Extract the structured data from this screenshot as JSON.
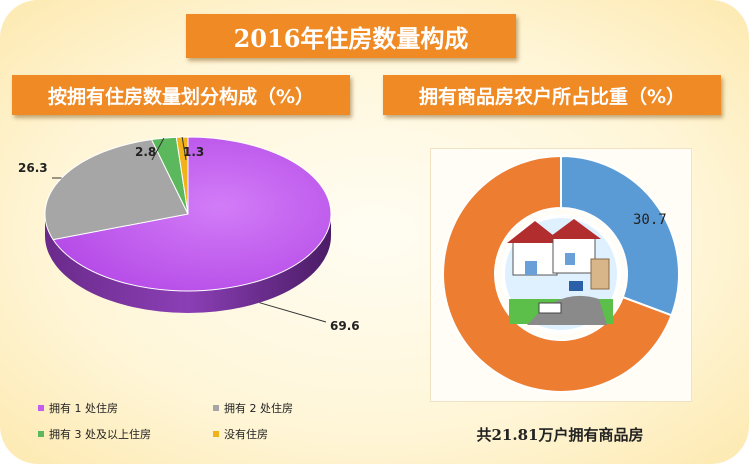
{
  "main_title": "2016年住房数量构成",
  "left_chart_title": "按拥有住房数量划分构成（%）",
  "right_chart_title": "拥有商品房农户所占比重（%）",
  "donut_caption": "共21.81万户拥有商品房",
  "chart_data": [
    {
      "type": "pie",
      "title": "按拥有住房数量划分构成（%）",
      "categories": [
        "拥有1处住房",
        "拥有2处住房",
        "拥有3处及以上住房",
        "没有住房"
      ],
      "values": [
        69.6,
        26.3,
        2.8,
        1.3
      ],
      "value_labels": [
        "69.6",
        "26.3",
        "2.8",
        "1.3"
      ],
      "colors": [
        "#c55cf0",
        "#a6a6a6",
        "#5cb85c",
        "#f2b21a"
      ],
      "legend": [
        "拥有 1 处住房",
        "拥有 2 处住房",
        "拥有 3 处及以上住房",
        "没有住房"
      ],
      "legend_position": "bottom"
    },
    {
      "type": "pie",
      "subtype": "donut",
      "title": "拥有商品房农户所占比重（%）",
      "values": [
        30.7,
        69.3
      ],
      "value_labels": [
        "30.7"
      ],
      "colors": [
        "#5b9bd5",
        "#ed7d31"
      ]
    }
  ]
}
